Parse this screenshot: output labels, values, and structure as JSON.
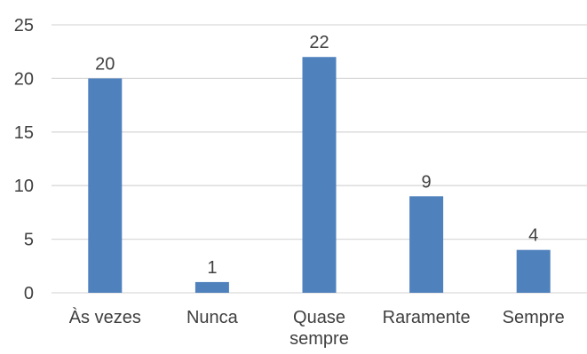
{
  "chart_data": {
    "type": "bar",
    "title": "",
    "xlabel": "",
    "ylabel": "",
    "categories": [
      [
        "Às vezes"
      ],
      [
        "Nunca"
      ],
      [
        "Quase",
        "sempre"
      ],
      [
        "Raramente"
      ],
      [
        "Sempre"
      ]
    ],
    "values": [
      20,
      1,
      22,
      9,
      4
    ],
    "data_labels": [
      "20",
      "1",
      "22",
      "9",
      "4"
    ],
    "ylim": [
      0,
      25
    ],
    "yticks": [
      "0",
      "5",
      "10",
      "15",
      "20",
      "25"
    ],
    "grid": true,
    "legend": "none",
    "colors": {
      "bar": "#4f81bd",
      "grid": "#d9d9d9",
      "text": "#404040"
    }
  }
}
